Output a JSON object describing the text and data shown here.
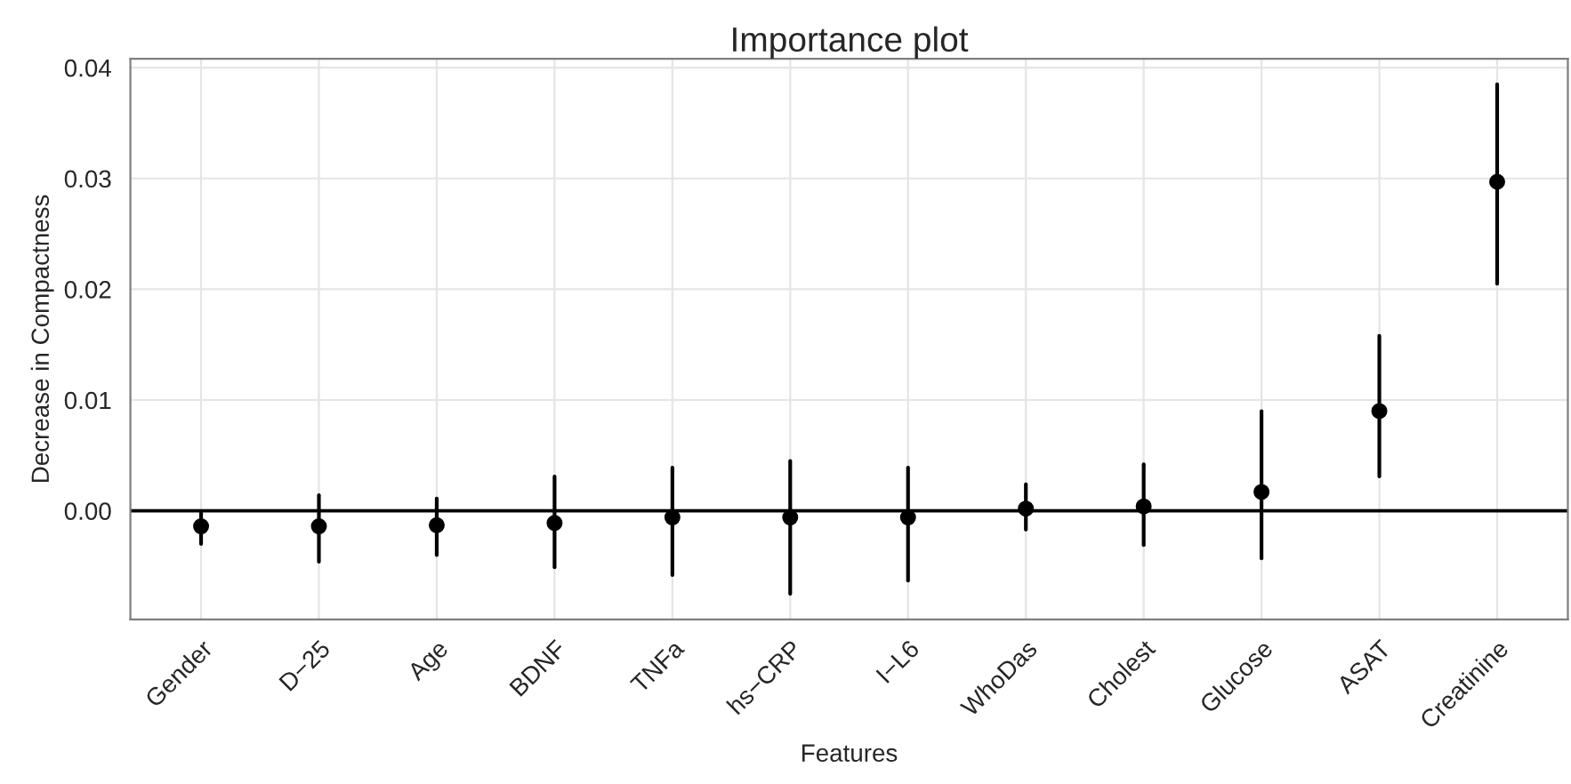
{
  "chart_data": {
    "type": "scatter",
    "title": "Importance plot",
    "xlabel": "Features",
    "ylabel": "Decrease in Compactness",
    "categories": [
      "Gender",
      "D−25",
      "Age",
      "BDNF",
      "TNFa",
      "hs−CRP",
      "I−L6",
      "WhoDas",
      "Cholest",
      "Glucose",
      "ASAT",
      "Creatinine"
    ],
    "series": [
      {
        "color": "#000000",
        "values": [
          -0.0014,
          -0.0014,
          -0.0013,
          -0.0011,
          -0.0006,
          -0.0006,
          -0.0006,
          0.0002,
          0.0004,
          0.0017,
          0.009,
          0.0297
        ],
        "errors": [
          [
            -0.003,
            -0.0002
          ],
          [
            -0.0046,
            0.0014
          ],
          [
            -0.004,
            0.0011
          ],
          [
            -0.0051,
            0.0031
          ],
          [
            -0.0058,
            0.0039
          ],
          [
            -0.0075,
            0.0045
          ],
          [
            -0.0063,
            0.0039
          ],
          [
            -0.0017,
            0.0024
          ],
          [
            -0.0031,
            0.0042
          ],
          [
            -0.0043,
            0.009
          ],
          [
            0.0031,
            0.0158
          ],
          [
            0.0205,
            0.0385
          ]
        ]
      }
    ],
    "ylim": [
      -0.0098,
      0.0408
    ],
    "yticks": [
      {
        "value": 0,
        "label": "0.00"
      },
      {
        "value": 0.01,
        "label": "0.01"
      },
      {
        "value": 0.02,
        "label": "0.02"
      },
      {
        "value": 0.03,
        "label": "0.03"
      },
      {
        "value": 0.04,
        "label": "0.04"
      }
    ],
    "ref_lines": [
      {
        "axis": "y",
        "value": 0,
        "color": "#000000"
      }
    ],
    "grid": true,
    "marker": "circle",
    "legend": false
  }
}
